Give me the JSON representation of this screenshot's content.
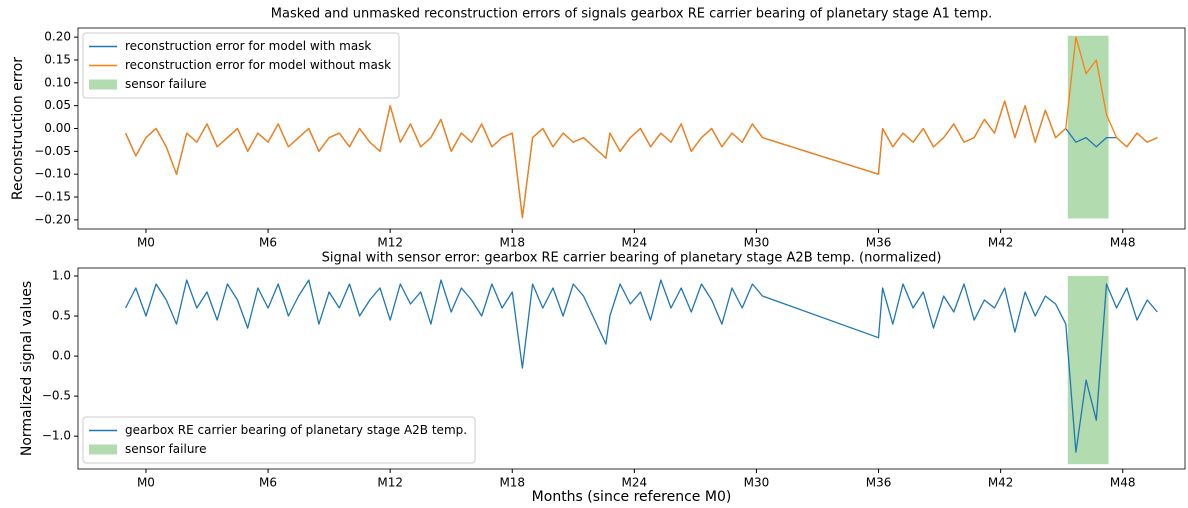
{
  "chart_data": [
    {
      "type": "line",
      "title": "Masked and unmasked reconstruction errors of signals gearbox RE carrier bearing of planetary stage A1 temp.",
      "y_label": "Reconstruction error",
      "legend": "upper left",
      "x": [
        -1,
        -0.5,
        0,
        0.5,
        1,
        1.5,
        2,
        2.5,
        3,
        3.5,
        4,
        4.5,
        5,
        5.5,
        6,
        6.5,
        7,
        7.5,
        8,
        8.5,
        9,
        9.5,
        10,
        10.5,
        11,
        11.5,
        12,
        12.5,
        13,
        13.5,
        14,
        14.5,
        15,
        15.5,
        16,
        16.5,
        17,
        17.5,
        18,
        18.5,
        19,
        19.5,
        20,
        20.5,
        21,
        21.5,
        22.6,
        22.8,
        23.3,
        23.8,
        24.3,
        24.8,
        25.3,
        25.8,
        26.3,
        26.8,
        27.3,
        27.8,
        28.3,
        28.8,
        29.3,
        29.8,
        30.3,
        36,
        36.2,
        36.7,
        37.2,
        37.7,
        38.2,
        38.7,
        39.2,
        39.7,
        40.2,
        40.7,
        41.2,
        41.7,
        42.2,
        42.7,
        43.2,
        43.7,
        44.2,
        44.7,
        45.2,
        45.7,
        46.2,
        46.7,
        47.2,
        47.7,
        48.2,
        48.7,
        49.2,
        49.7
      ],
      "series": [
        {
          "name": "reconstruction error for model with mask",
          "color": "#1f77b4",
          "values": [
            -0.01,
            -0.06,
            -0.02,
            0.0,
            -0.04,
            -0.1,
            -0.01,
            -0.03,
            0.01,
            -0.04,
            -0.02,
            0.0,
            -0.05,
            -0.01,
            -0.03,
            0.01,
            -0.04,
            -0.02,
            0.0,
            -0.05,
            -0.02,
            -0.01,
            -0.04,
            0.0,
            -0.03,
            -0.05,
            0.05,
            -0.03,
            0.01,
            -0.04,
            -0.02,
            0.02,
            -0.05,
            -0.01,
            -0.03,
            0.01,
            -0.04,
            -0.02,
            -0.01,
            -0.195,
            -0.02,
            0.0,
            -0.04,
            -0.01,
            -0.03,
            -0.02,
            -0.065,
            -0.01,
            -0.05,
            -0.02,
            0.0,
            -0.04,
            -0.01,
            -0.03,
            0.01,
            -0.05,
            -0.02,
            0.0,
            -0.04,
            -0.01,
            -0.03,
            0.01,
            -0.02,
            -0.1,
            0.0,
            -0.04,
            -0.01,
            -0.03,
            0.0,
            -0.04,
            -0.02,
            0.01,
            -0.03,
            -0.02,
            0.02,
            -0.01,
            0.06,
            -0.02,
            0.05,
            -0.03,
            0.04,
            -0.02,
            0.0,
            -0.03,
            -0.02,
            -0.04,
            -0.02,
            -0.02,
            -0.04,
            -0.01,
            -0.03,
            -0.02
          ]
        },
        {
          "name": "reconstruction error for model without mask",
          "color": "#ff7f0e",
          "values": [
            -0.01,
            -0.06,
            -0.02,
            0.0,
            -0.04,
            -0.1,
            -0.01,
            -0.03,
            0.01,
            -0.04,
            -0.02,
            0.0,
            -0.05,
            -0.01,
            -0.03,
            0.01,
            -0.04,
            -0.02,
            0.0,
            -0.05,
            -0.02,
            -0.01,
            -0.04,
            0.0,
            -0.03,
            -0.05,
            0.05,
            -0.03,
            0.01,
            -0.04,
            -0.02,
            0.02,
            -0.05,
            -0.01,
            -0.03,
            0.01,
            -0.04,
            -0.02,
            -0.01,
            -0.195,
            -0.02,
            0.0,
            -0.04,
            -0.01,
            -0.03,
            -0.02,
            -0.065,
            -0.01,
            -0.05,
            -0.02,
            0.0,
            -0.04,
            -0.01,
            -0.03,
            0.01,
            -0.05,
            -0.02,
            0.0,
            -0.04,
            -0.01,
            -0.03,
            0.01,
            -0.02,
            -0.1,
            0.0,
            -0.04,
            -0.01,
            -0.03,
            0.0,
            -0.04,
            -0.02,
            0.01,
            -0.03,
            -0.02,
            0.02,
            -0.01,
            0.06,
            -0.02,
            0.05,
            -0.03,
            0.04,
            -0.02,
            0.0,
            0.2,
            0.12,
            0.15,
            0.03,
            -0.02,
            -0.04,
            -0.01,
            -0.03,
            -0.02
          ]
        }
      ],
      "spans": [
        {
          "name": "sensor failure",
          "color": "#b3dbb0",
          "x": [
            45.3,
            47.3
          ],
          "y": [
            -0.197,
            0.203
          ]
        }
      ],
      "xlim": [
        -3.34,
        51.06
      ],
      "xticks": [
        {
          "value": 0,
          "label": "M0"
        },
        {
          "value": 6,
          "label": "M6"
        },
        {
          "value": 12,
          "label": "M12"
        },
        {
          "value": 18,
          "label": "M18"
        },
        {
          "value": 24,
          "label": "M24"
        },
        {
          "value": 30,
          "label": "M30"
        },
        {
          "value": 36,
          "label": "M36"
        },
        {
          "value": 42,
          "label": "M42"
        },
        {
          "value": 48,
          "label": "M48"
        }
      ],
      "ylim": [
        -0.22,
        0.22
      ],
      "yticks": [
        {
          "value": -0.2,
          "label": "−0.20"
        },
        {
          "value": -0.15,
          "label": "−0.15"
        },
        {
          "value": -0.1,
          "label": "−0.10"
        },
        {
          "value": -0.05,
          "label": "−0.05"
        },
        {
          "value": 0,
          "label": "0.00"
        },
        {
          "value": 0.05,
          "label": "0.05"
        },
        {
          "value": 0.1,
          "label": "0.10"
        },
        {
          "value": 0.15,
          "label": "0.15"
        },
        {
          "value": 0.2,
          "label": "0.20"
        }
      ]
    },
    {
      "type": "line",
      "title": "Signal with sensor error: gearbox RE carrier bearing of planetary stage A2B temp. (normalized)",
      "x_label": "Months (since reference M0)",
      "y_label": "Normalized signal values",
      "legend": "lower left",
      "x": [
        -1,
        -0.5,
        0,
        0.5,
        1,
        1.5,
        2,
        2.5,
        3,
        3.5,
        4,
        4.5,
        5,
        5.5,
        6,
        6.5,
        7,
        7.5,
        8,
        8.5,
        9,
        9.5,
        10,
        10.5,
        11,
        11.5,
        12,
        12.5,
        13,
        13.5,
        14,
        14.5,
        15,
        15.5,
        16,
        16.5,
        17,
        17.5,
        18,
        18.5,
        19,
        19.5,
        20,
        20.5,
        21,
        21.5,
        22.6,
        22.8,
        23.3,
        23.8,
        24.3,
        24.8,
        25.3,
        25.8,
        26.3,
        26.8,
        27.3,
        27.8,
        28.3,
        28.8,
        29.3,
        29.8,
        30.3,
        36,
        36.2,
        36.7,
        37.2,
        37.7,
        38.2,
        38.7,
        39.2,
        39.7,
        40.2,
        40.7,
        41.2,
        41.7,
        42.2,
        42.7,
        43.2,
        43.7,
        44.2,
        44.7,
        45.2,
        45.7,
        46.2,
        46.7,
        47.2,
        47.7,
        48.2,
        48.7,
        49.2,
        49.7
      ],
      "series": [
        {
          "name": "gearbox RE carrier bearing of planetary stage A2B temp.",
          "color": "#1f77b4",
          "values": [
            0.6,
            0.85,
            0.5,
            0.9,
            0.7,
            0.4,
            0.95,
            0.6,
            0.8,
            0.45,
            0.9,
            0.7,
            0.35,
            0.85,
            0.6,
            0.9,
            0.5,
            0.75,
            0.95,
            0.4,
            0.8,
            0.6,
            0.9,
            0.5,
            0.7,
            0.85,
            0.45,
            0.9,
            0.65,
            0.8,
            0.4,
            0.95,
            0.55,
            0.85,
            0.7,
            0.5,
            0.9,
            0.6,
            0.8,
            -0.15,
            0.9,
            0.6,
            0.85,
            0.5,
            0.9,
            0.75,
            0.15,
            0.5,
            0.9,
            0.65,
            0.8,
            0.45,
            0.95,
            0.6,
            0.85,
            0.55,
            0.9,
            0.7,
            0.4,
            0.85,
            0.6,
            0.9,
            0.75,
            0.23,
            0.85,
            0.4,
            0.9,
            0.6,
            0.8,
            0.35,
            0.75,
            0.55,
            0.9,
            0.45,
            0.7,
            0.6,
            0.85,
            0.3,
            0.8,
            0.5,
            0.75,
            0.65,
            0.4,
            -1.2,
            -0.3,
            -0.8,
            0.9,
            0.6,
            0.85,
            0.45,
            0.7,
            0.55
          ]
        }
      ],
      "spans": [
        {
          "name": "sensor failure",
          "color": "#b3dbb0",
          "x": [
            45.3,
            47.3
          ],
          "y": [
            -1.35,
            1.0
          ]
        }
      ],
      "xlim": [
        -3.34,
        51.06
      ],
      "xticks": [
        {
          "value": 0,
          "label": "M0"
        },
        {
          "value": 6,
          "label": "M6"
        },
        {
          "value": 12,
          "label": "M12"
        },
        {
          "value": 18,
          "label": "M18"
        },
        {
          "value": 24,
          "label": "M24"
        },
        {
          "value": 30,
          "label": "M30"
        },
        {
          "value": 36,
          "label": "M36"
        },
        {
          "value": 42,
          "label": "M42"
        },
        {
          "value": 48,
          "label": "M48"
        }
      ],
      "ylim": [
        -1.41,
        1.1
      ],
      "yticks": [
        {
          "value": -1,
          "label": "−1.0"
        },
        {
          "value": -0.5,
          "label": "−0.5"
        },
        {
          "value": 0,
          "label": "0.0"
        },
        {
          "value": 0.5,
          "label": "0.5"
        },
        {
          "value": 1,
          "label": "1.0"
        }
      ]
    }
  ]
}
